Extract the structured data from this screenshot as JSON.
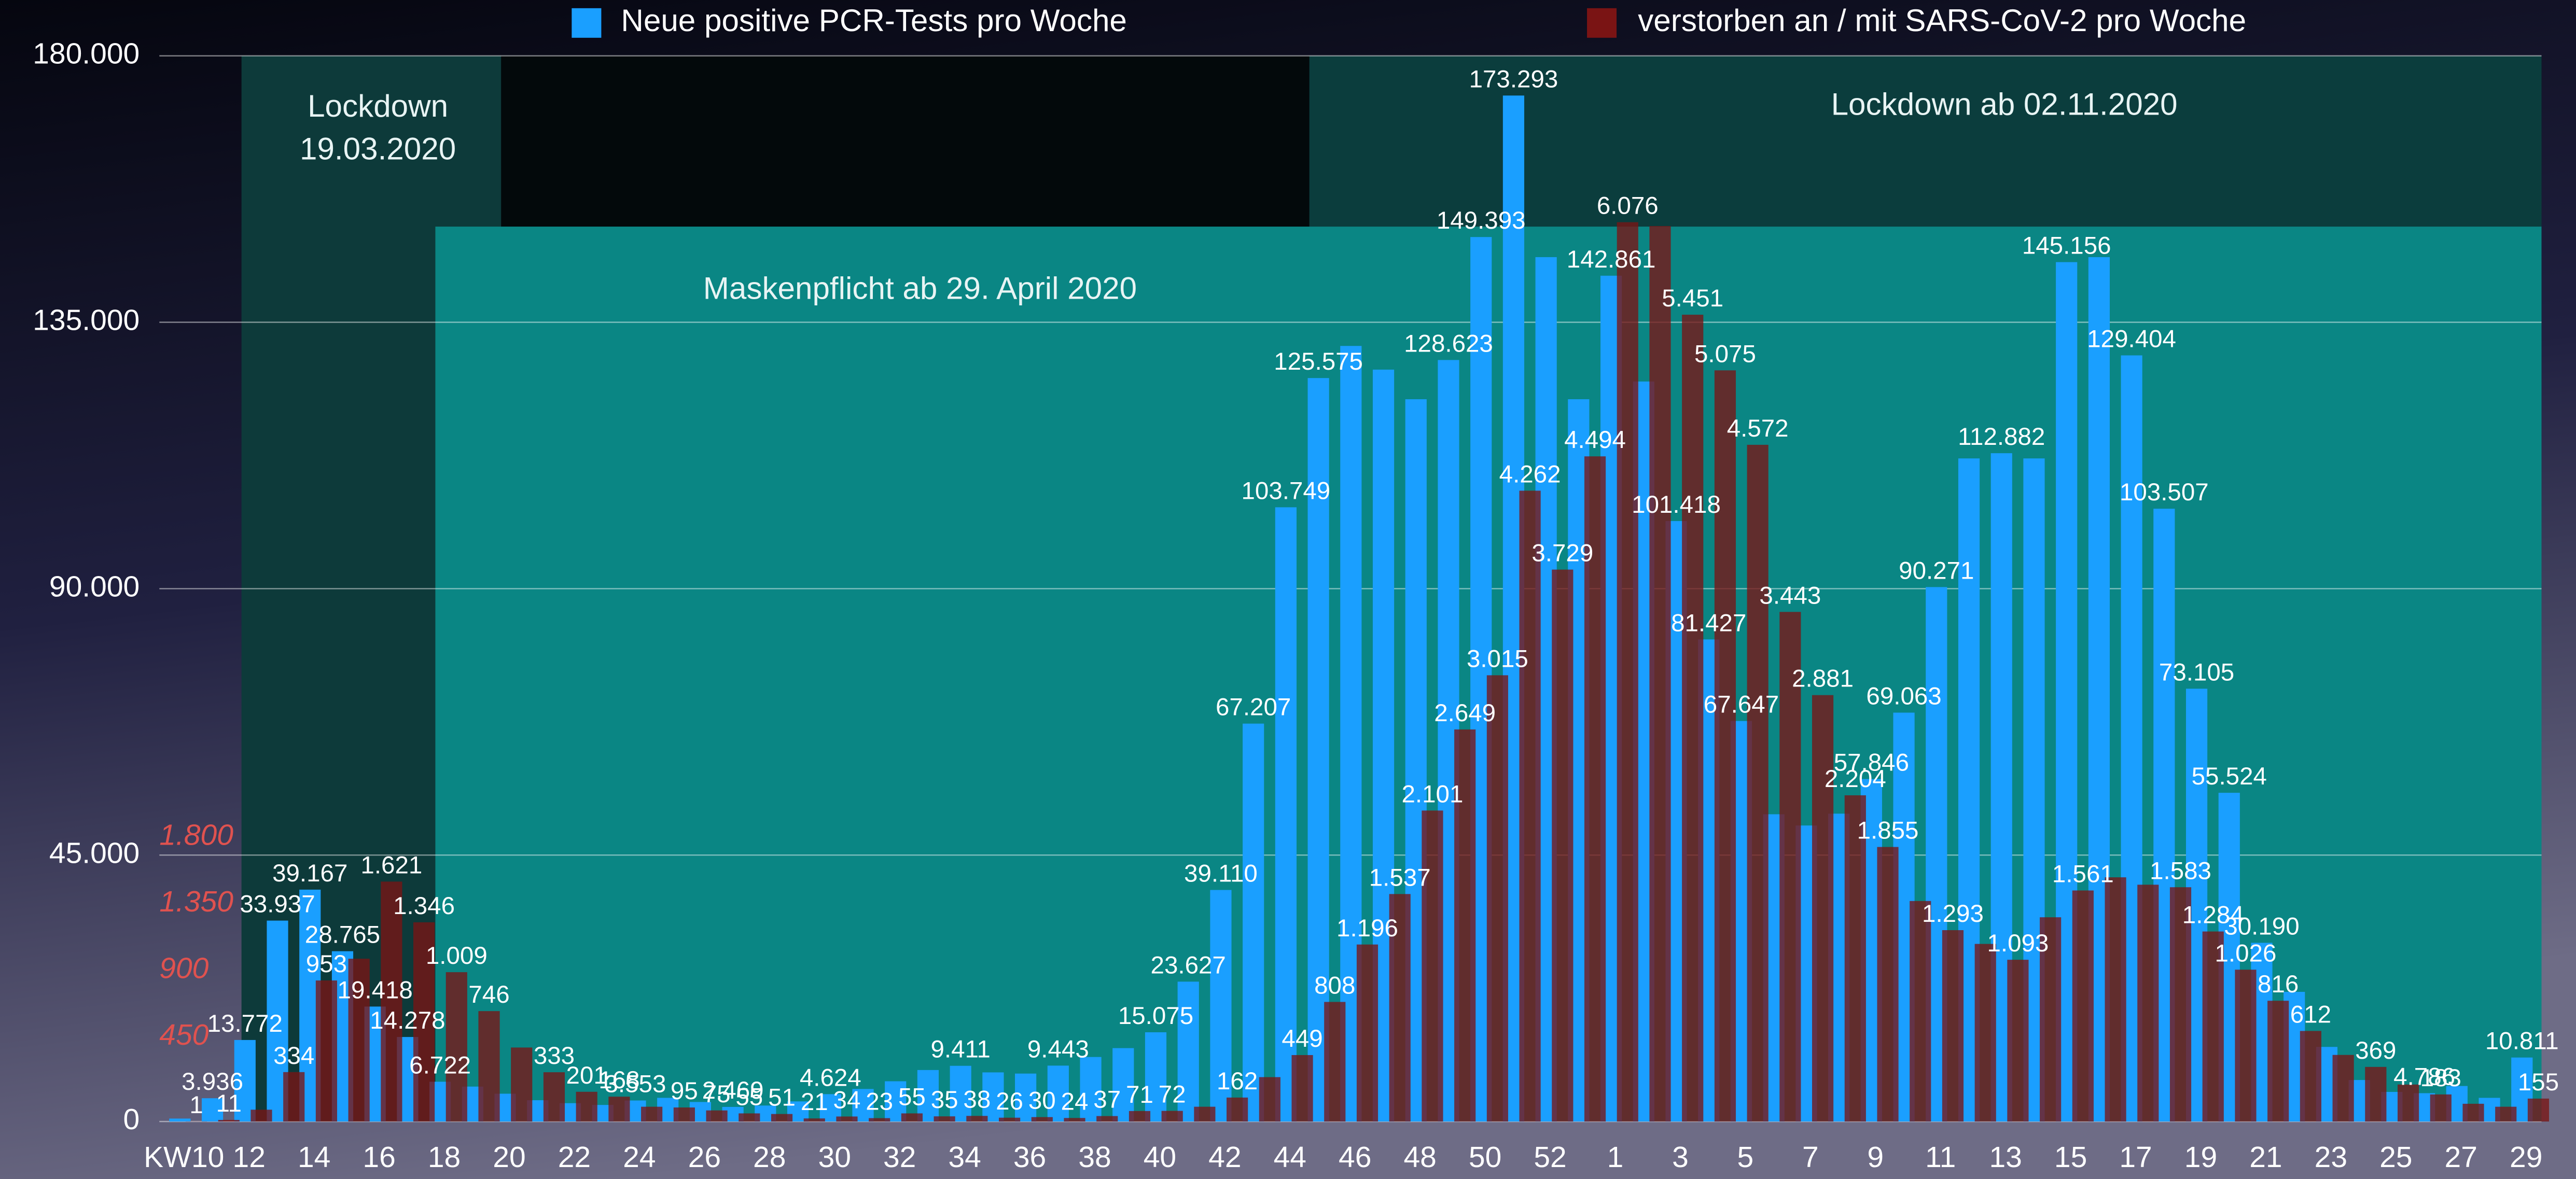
{
  "chart_data": {
    "type": "bar",
    "categories": [
      "KW10",
      null,
      "12",
      null,
      "14",
      null,
      "16",
      null,
      "18",
      null,
      "20",
      null,
      "22",
      null,
      "24",
      null,
      "26",
      null,
      "28",
      null,
      "30",
      null,
      "32",
      null,
      "34",
      null,
      "36",
      null,
      "38",
      null,
      "40",
      null,
      "42",
      null,
      "44",
      null,
      "46",
      null,
      "48",
      null,
      "50",
      null,
      "52",
      null,
      "1",
      null,
      "3",
      null,
      "5",
      null,
      "7",
      null,
      "9",
      null,
      "11",
      null,
      "13",
      null,
      "15",
      null,
      "17",
      null,
      "19",
      null,
      "21",
      null,
      "23",
      null,
      "25",
      null,
      "27",
      null,
      "29"
    ],
    "series": [
      {
        "name": "Neue positive PCR-Tests pro Woche",
        "color": "#1a9fff",
        "values": [
          500,
          3936,
          13772,
          33937,
          39167,
          28765,
          19418,
          14278,
          6722,
          5900,
          4700,
          3600,
          3100,
          2800,
          3553,
          4000,
          3300,
          2469,
          2700,
          3400,
          4624,
          5500,
          6800,
          8700,
          9411,
          8300,
          8100,
          9443,
          10900,
          12400,
          15075,
          23627,
          39110,
          67207,
          103749,
          125575,
          131000,
          127000,
          122000,
          128623,
          149393,
          173293,
          146000,
          122000,
          142861,
          124990,
          101418,
          81427,
          67647,
          51900,
          50000,
          52000,
          57846,
          69063,
          90271,
          112000,
          112882,
          112000,
          145156,
          146000,
          129404,
          103507,
          73105,
          55524,
          30190,
          21900,
          12602,
          7012,
          5000,
          4786,
          6000,
          4000,
          10811
        ],
        "value_labels": [
          null,
          "3.936",
          "13.772",
          "33.937",
          "39.167",
          "28.765",
          "19.418",
          "14.278",
          "6.722",
          null,
          null,
          null,
          null,
          null,
          "3.553",
          null,
          null,
          "2.469",
          null,
          null,
          "4.624",
          null,
          null,
          null,
          "9.411",
          null,
          null,
          "9.443",
          null,
          null,
          "15.075",
          "23.627",
          "39.110",
          "67.207",
          "103.749",
          "125.575",
          null,
          null,
          null,
          "128.623",
          "149.393",
          "173.293",
          null,
          null,
          "142.861",
          null,
          "101.418",
          "81.427",
          "67.647",
          null,
          null,
          null,
          "57.846",
          "69.063",
          "90.271",
          null,
          "112.882",
          null,
          "145.156",
          null,
          "129.404",
          "103.507",
          "73.105",
          "55.524",
          "30.190",
          null,
          null,
          null,
          null,
          "4.786",
          null,
          null,
          "10.811"
        ]
      },
      {
        "name": "verstorben an / mit SARS-CoV-2 pro Woche",
        "color": "#7a1414",
        "axis": "y2",
        "values": [
          1,
          11,
          80,
          334,
          953,
          1100,
          1621,
          1346,
          1009,
          746,
          500,
          333,
          201,
          168,
          100,
          95,
          75,
          55,
          51,
          21,
          34,
          23,
          55,
          35,
          38,
          26,
          30,
          24,
          37,
          71,
          72,
          100,
          162,
          300,
          449,
          808,
          1196,
          1537,
          2101,
          2649,
          3015,
          4262,
          3729,
          4494,
          6076,
          6050,
          5451,
          5075,
          4572,
          3443,
          2881,
          2204,
          1855,
          1490,
          1293,
          1200,
          1093,
          1380,
          1561,
          1650,
          1600,
          1583,
          1284,
          1026,
          816,
          612,
          450,
          369,
          250,
          183,
          120,
          100,
          155
        ],
        "value_labels": [
          "1",
          "11",
          null,
          "334",
          "953",
          null,
          "1.621",
          "1.346",
          "1.009",
          "746",
          null,
          "333",
          "201",
          "168",
          null,
          "95",
          "75",
          "55",
          "51",
          "21",
          "34",
          "23",
          "55",
          "35",
          "38",
          "26",
          "30",
          "24",
          "37",
          "71",
          "72",
          null,
          "162",
          null,
          "449",
          "808",
          "1.196",
          "1.537",
          "2.101",
          "2.649",
          "3.015",
          "4.262",
          "3.729",
          "4.494",
          "6.076",
          null,
          "5.451",
          "5.075",
          "4.572",
          "3.443",
          "2.881",
          "2.204",
          "1.855",
          null,
          "1.293",
          null,
          "1.093",
          null,
          "1.561",
          null,
          null,
          "1.583",
          "1.284",
          "1.026",
          "816",
          "612",
          null,
          "369",
          null,
          "183",
          null,
          null,
          "155"
        ]
      }
    ],
    "ylim": [
      0,
      180000
    ],
    "yticks": [
      0,
      {
        "value": 45000,
        "label": "45.000"
      },
      {
        "value": 90000,
        "label": "90.000"
      },
      {
        "value": 135000,
        "label": "135.000"
      },
      {
        "value": 180000,
        "label": "180.000"
      }
    ],
    "y2lim": [
      0,
      7200
    ],
    "y2ticks": [
      450,
      900,
      {
        "value": 1350,
        "label": "1.350"
      },
      {
        "value": 1800,
        "label": "1.800"
      }
    ],
    "grid": true,
    "legend": "top",
    "annotations": [
      [
        "Lockdown",
        "19.03.2020"
      ],
      [
        "Lockdown ab 02.11.2020"
      ],
      [
        "Maskenpflicht ab 29. April 2020"
      ]
    ]
  }
}
